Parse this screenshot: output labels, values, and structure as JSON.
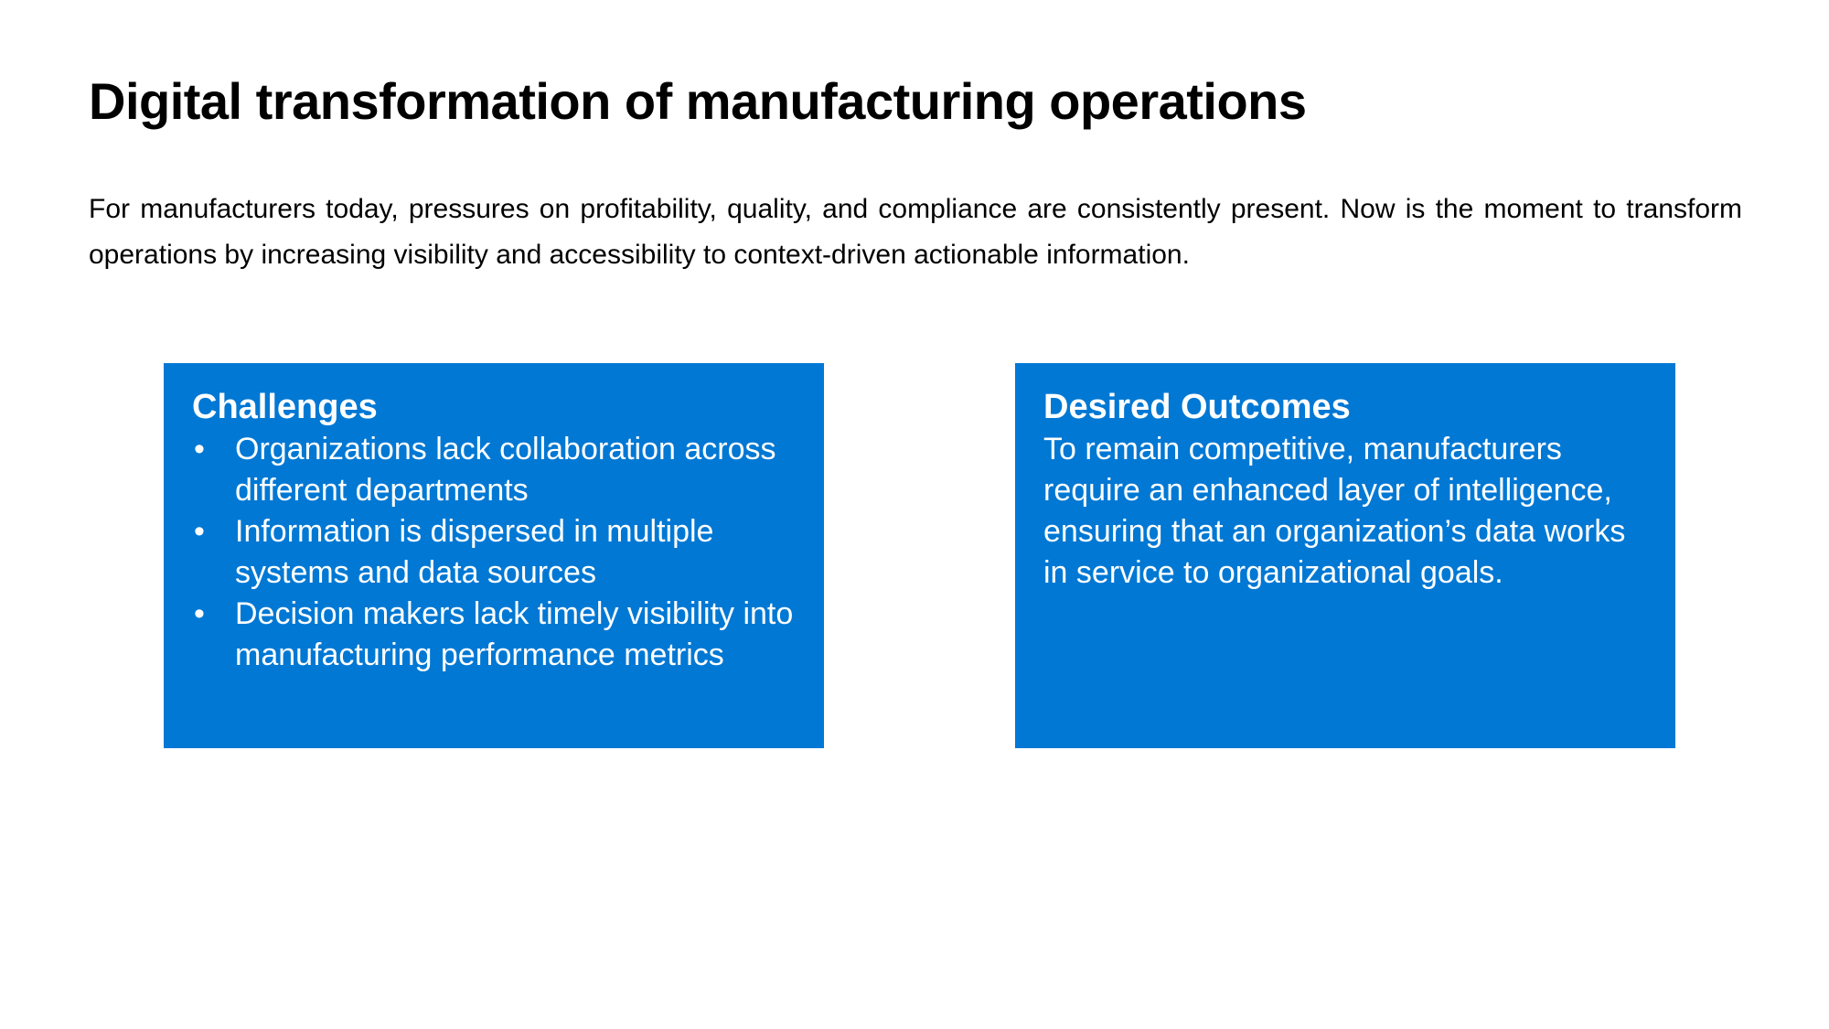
{
  "title": "Digital transformation of manufacturing operations",
  "intro": "For manufacturers today, pressures on profitability, quality, and compliance are consistently present. Now is the moment to transform operations by increasing visibility and accessibility to context-driven actionable information.",
  "colors": {
    "card_background": "#0078D4",
    "card_text": "#FFFFFF",
    "title_text": "#000000"
  },
  "challenges": {
    "heading": "Challenges",
    "bullet": "•",
    "items": [
      "Organizations lack collaboration across different departments",
      "Information is dispersed in multiple systems and data sources",
      "Decision makers lack timely visibility into manufacturing performance metrics"
    ]
  },
  "outcomes": {
    "heading": "Desired Outcomes",
    "body": "To remain competitive, manufacturers require an enhanced layer of intelligence, ensuring that an organization’s data works in service to organizational goals."
  }
}
